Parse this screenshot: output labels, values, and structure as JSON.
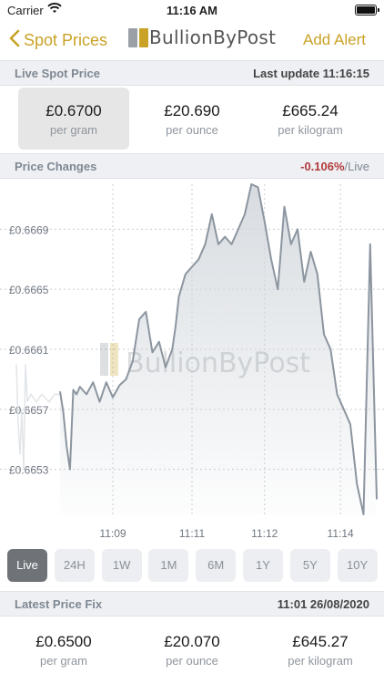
{
  "status_bar": {
    "carrier": "Carrier",
    "time": "11:16 AM"
  },
  "nav": {
    "back_label": "Spot Prices",
    "logo_text": "BullionByPost",
    "add_alert_label": "Add Alert"
  },
  "live_spot": {
    "header": "Live Spot Price",
    "last_update": "Last update 11:16:15",
    "prices": [
      {
        "value": "£0.6700",
        "unit": "per gram",
        "selected": true
      },
      {
        "value": "£20.690",
        "unit": "per ounce",
        "selected": false
      },
      {
        "value": "£665.24",
        "unit": "per kilogram",
        "selected": false
      }
    ]
  },
  "price_changes": {
    "header": "Price Changes",
    "change": "-0.106%",
    "suffix": "/Live"
  },
  "chart_data": {
    "type": "area",
    "watermark": "BullionByPost",
    "y_ticks": [
      "£0.6669",
      "£0.6665",
      "£0.6661",
      "£0.6657",
      "£0.6653"
    ],
    "x_ticks": [
      "11:09",
      "11:11",
      "11:12",
      "11:14"
    ],
    "ylim": [
      0.665,
      0.6672
    ],
    "grid": true,
    "series": [
      {
        "x": [
          0,
          1,
          2,
          3,
          4,
          5,
          6,
          8,
          10,
          12,
          14,
          16,
          18,
          20,
          22,
          24,
          26,
          28,
          30,
          32,
          34,
          35,
          36,
          38,
          40,
          42,
          44,
          46,
          48,
          50,
          52,
          54,
          56,
          58,
          60,
          62,
          64,
          66,
          68,
          70,
          72,
          74,
          76,
          78,
          80,
          82,
          84,
          86,
          88,
          90,
          92,
          94,
          96
        ],
        "values": [
          0.66582,
          0.66568,
          0.66545,
          0.6653,
          0.66583,
          0.6658,
          0.66585,
          0.6658,
          0.66588,
          0.66575,
          0.66588,
          0.66578,
          0.66586,
          0.6659,
          0.66602,
          0.6663,
          0.66635,
          0.66608,
          0.66615,
          0.66598,
          0.6661,
          0.66625,
          0.66645,
          0.6666,
          0.66665,
          0.6667,
          0.6668,
          0.667,
          0.6668,
          0.66685,
          0.6668,
          0.6669,
          0.667,
          0.6672,
          0.66718,
          0.66695,
          0.6667,
          0.6665,
          0.66705,
          0.6668,
          0.6669,
          0.66655,
          0.66675,
          0.6666,
          0.6662,
          0.6661,
          0.6658,
          0.6657,
          0.6656,
          0.6652,
          0.665,
          0.6668,
          0.6651
        ]
      }
    ]
  },
  "ranges": {
    "items": [
      "Live",
      "24H",
      "1W",
      "1M",
      "6M",
      "1Y",
      "5Y",
      "10Y"
    ],
    "active": "Live"
  },
  "latest_fix": {
    "header": "Latest Price Fix",
    "timestamp": "11:01 26/08/2020",
    "prices": [
      {
        "value": "£0.6500",
        "unit": "per gram"
      },
      {
        "value": "£20.070",
        "unit": "per ounce"
      },
      {
        "value": "£645.27",
        "unit": "per kilogram"
      }
    ]
  },
  "colors": {
    "accent": "#c9a227",
    "negative": "#b23a3a",
    "line": "#8c959f",
    "fill": "#d3d8dd"
  }
}
